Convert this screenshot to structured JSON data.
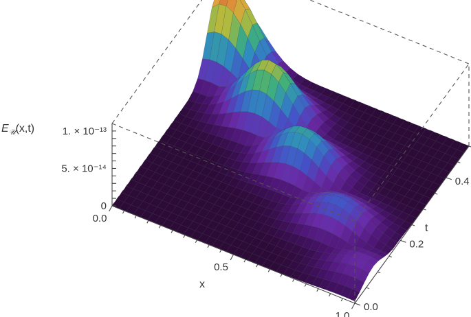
{
  "chart_data": {
    "type": "surface3d",
    "title": "",
    "x_label": "x",
    "y_label": "t",
    "z_label": "Eᵤ(x,t)",
    "z_label_parts": {
      "base": "E",
      "sub": "𝒰",
      "args": "(x,t)"
    },
    "x_range": [
      0.0,
      1.0
    ],
    "t_range": [
      0.0,
      0.5
    ],
    "z_range": [
      0,
      1.1e-13
    ],
    "x_ticks": [
      {
        "value": 0.0,
        "label": "0.0"
      },
      {
        "value": 0.5,
        "label": "0.5"
      },
      {
        "value": 1.0,
        "label": "1.0"
      }
    ],
    "t_ticks": [
      {
        "value": 0.0,
        "label": "0.0"
      },
      {
        "value": 0.2,
        "label": "0.2"
      },
      {
        "value": 0.4,
        "label": "0.4"
      }
    ],
    "z_ticks": [
      {
        "value": 0,
        "label": "0"
      },
      {
        "value": 5e-14,
        "label": "5. × 10⁻¹⁴"
      },
      {
        "value": 1e-13,
        "label": "1. × 10⁻¹³"
      }
    ],
    "ridges": [
      {
        "t_center": 0.46,
        "peak_x": 0.05,
        "peak_value": 1.05e-13
      },
      {
        "t_center": 0.37,
        "peak_x": 0.3,
        "peak_value": 7.6e-14
      },
      {
        "t_center": 0.28,
        "peak_x": 0.52,
        "peak_value": 5.2e-14
      },
      {
        "t_center": 0.18,
        "peak_x": 0.76,
        "peak_value": 3.2e-14
      },
      {
        "t_center": 0.08,
        "peak_x": 0.95,
        "peak_value": 1.7e-14
      }
    ],
    "colormap": [
      "#2a0a33",
      "#4a1470",
      "#6a2aa8",
      "#4453c8",
      "#2f8cc0",
      "#3fb07a",
      "#b4ba3c",
      "#e2a13c",
      "#c8362a"
    ],
    "grid": true,
    "box": true
  }
}
